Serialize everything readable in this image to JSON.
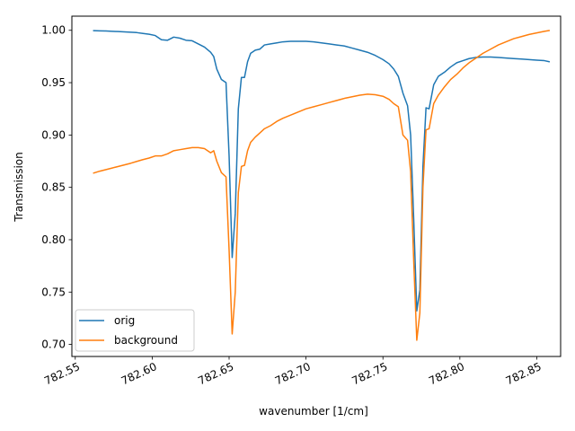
{
  "chart_data": {
    "type": "line",
    "title": "",
    "xlabel": "wavenumber [1/cm]",
    "ylabel": "Transmission",
    "xlim": [
      782.5478,
      782.8655
    ],
    "ylim": [
      0.6885,
      1.0135
    ],
    "xticks": [
      782.55,
      782.6,
      782.65,
      782.7,
      782.75,
      782.8,
      782.85
    ],
    "xtick_labels": [
      "782.55",
      "782.60",
      "782.65",
      "782.70",
      "782.75",
      "782.80",
      "782.85"
    ],
    "yticks": [
      0.7,
      0.75,
      0.8,
      0.85,
      0.9,
      0.95,
      1.0
    ],
    "ytick_labels": [
      "0.70",
      "0.75",
      "0.80",
      "0.85",
      "0.90",
      "0.95",
      "1.00"
    ],
    "grid": false,
    "legend_position": "lower-left",
    "series": [
      {
        "name": "orig",
        "color": "#1f77b4",
        "points": [
          [
            782.562,
            0.9997
          ],
          [
            782.566,
            0.9995
          ],
          [
            782.57,
            0.9993
          ],
          [
            782.574,
            0.999
          ],
          [
            782.578,
            0.9988
          ],
          [
            782.582,
            0.9985
          ],
          [
            782.586,
            0.9982
          ],
          [
            782.59,
            0.9978
          ],
          [
            782.594,
            0.997
          ],
          [
            782.598,
            0.9962
          ],
          [
            782.602,
            0.995
          ],
          [
            782.606,
            0.991
          ],
          [
            782.61,
            0.9905
          ],
          [
            782.614,
            0.9935
          ],
          [
            782.618,
            0.9925
          ],
          [
            782.622,
            0.9905
          ],
          [
            782.626,
            0.99
          ],
          [
            782.63,
            0.987
          ],
          [
            782.634,
            0.984
          ],
          [
            782.638,
            0.979
          ],
          [
            782.64,
            0.975
          ],
          [
            782.642,
            0.963
          ],
          [
            782.645,
            0.953
          ],
          [
            782.648,
            0.95
          ],
          [
            782.65,
            0.88
          ],
          [
            782.652,
            0.783
          ],
          [
            782.654,
            0.825
          ],
          [
            782.656,
            0.925
          ],
          [
            782.658,
            0.955
          ],
          [
            782.66,
            0.955
          ],
          [
            782.662,
            0.97
          ],
          [
            782.664,
            0.978
          ],
          [
            782.667,
            0.981
          ],
          [
            782.67,
            0.982
          ],
          [
            782.673,
            0.986
          ],
          [
            782.677,
            0.987
          ],
          [
            782.681,
            0.988
          ],
          [
            782.685,
            0.989
          ],
          [
            782.69,
            0.9895
          ],
          [
            782.695,
            0.9895
          ],
          [
            782.7,
            0.9895
          ],
          [
            782.705,
            0.989
          ],
          [
            782.71,
            0.988
          ],
          [
            782.715,
            0.987
          ],
          [
            782.72,
            0.986
          ],
          [
            782.725,
            0.985
          ],
          [
            782.73,
            0.983
          ],
          [
            782.735,
            0.981
          ],
          [
            782.74,
            0.979
          ],
          [
            782.745,
            0.976
          ],
          [
            782.75,
            0.972
          ],
          [
            782.754,
            0.968
          ],
          [
            782.757,
            0.963
          ],
          [
            782.76,
            0.956
          ],
          [
            782.763,
            0.94
          ],
          [
            782.766,
            0.928
          ],
          [
            782.768,
            0.9
          ],
          [
            782.77,
            0.82
          ],
          [
            782.772,
            0.732
          ],
          [
            782.774,
            0.752
          ],
          [
            782.776,
            0.87
          ],
          [
            782.778,
            0.926
          ],
          [
            782.78,
            0.925
          ],
          [
            782.783,
            0.948
          ],
          [
            782.786,
            0.956
          ],
          [
            782.79,
            0.96
          ],
          [
            782.794,
            0.965
          ],
          [
            782.798,
            0.969
          ],
          [
            782.802,
            0.971
          ],
          [
            782.806,
            0.973
          ],
          [
            782.81,
            0.974
          ],
          [
            782.815,
            0.9745
          ],
          [
            782.82,
            0.9745
          ],
          [
            782.825,
            0.974
          ],
          [
            782.83,
            0.9735
          ],
          [
            782.835,
            0.973
          ],
          [
            782.84,
            0.9725
          ],
          [
            782.845,
            0.972
          ],
          [
            782.85,
            0.9715
          ],
          [
            782.855,
            0.971
          ],
          [
            782.858,
            0.97
          ]
        ]
      },
      {
        "name": "background",
        "color": "#ff7f0e",
        "points": [
          [
            782.562,
            0.8637
          ],
          [
            782.566,
            0.8655
          ],
          [
            782.57,
            0.867
          ],
          [
            782.574,
            0.8685
          ],
          [
            782.578,
            0.87
          ],
          [
            782.582,
            0.8715
          ],
          [
            782.586,
            0.873
          ],
          [
            782.59,
            0.8748
          ],
          [
            782.594,
            0.8765
          ],
          [
            782.598,
            0.878
          ],
          [
            782.602,
            0.88
          ],
          [
            782.606,
            0.88
          ],
          [
            782.61,
            0.882
          ],
          [
            782.614,
            0.885
          ],
          [
            782.618,
            0.886
          ],
          [
            782.622,
            0.887
          ],
          [
            782.626,
            0.888
          ],
          [
            782.63,
            0.888
          ],
          [
            782.634,
            0.887
          ],
          [
            782.638,
            0.883
          ],
          [
            782.64,
            0.885
          ],
          [
            782.642,
            0.875
          ],
          [
            782.645,
            0.864
          ],
          [
            782.648,
            0.86
          ],
          [
            782.65,
            0.79
          ],
          [
            782.652,
            0.71
          ],
          [
            782.654,
            0.75
          ],
          [
            782.656,
            0.845
          ],
          [
            782.658,
            0.87
          ],
          [
            782.66,
            0.871
          ],
          [
            782.662,
            0.885
          ],
          [
            782.664,
            0.893
          ],
          [
            782.667,
            0.898
          ],
          [
            782.67,
            0.902
          ],
          [
            782.673,
            0.906
          ],
          [
            782.677,
            0.909
          ],
          [
            782.681,
            0.913
          ],
          [
            782.685,
            0.916
          ],
          [
            782.69,
            0.919
          ],
          [
            782.695,
            0.922
          ],
          [
            782.7,
            0.925
          ],
          [
            782.705,
            0.927
          ],
          [
            782.71,
            0.929
          ],
          [
            782.715,
            0.931
          ],
          [
            782.72,
            0.933
          ],
          [
            782.725,
            0.935
          ],
          [
            782.73,
            0.9365
          ],
          [
            782.735,
            0.938
          ],
          [
            782.74,
            0.939
          ],
          [
            782.745,
            0.9385
          ],
          [
            782.75,
            0.937
          ],
          [
            782.754,
            0.934
          ],
          [
            782.757,
            0.93
          ],
          [
            782.76,
            0.927
          ],
          [
            782.763,
            0.9
          ],
          [
            782.766,
            0.895
          ],
          [
            782.768,
            0.865
          ],
          [
            782.77,
            0.78
          ],
          [
            782.772,
            0.704
          ],
          [
            782.774,
            0.73
          ],
          [
            782.776,
            0.85
          ],
          [
            782.778,
            0.905
          ],
          [
            782.78,
            0.906
          ],
          [
            782.783,
            0.93
          ],
          [
            782.786,
            0.938
          ],
          [
            782.79,
            0.946
          ],
          [
            782.794,
            0.953
          ],
          [
            782.798,
            0.958
          ],
          [
            782.802,
            0.964
          ],
          [
            782.806,
            0.969
          ],
          [
            782.81,
            0.973
          ],
          [
            782.815,
            0.978
          ],
          [
            782.82,
            0.982
          ],
          [
            782.825,
            0.986
          ],
          [
            782.83,
            0.989
          ],
          [
            782.835,
            0.992
          ],
          [
            782.84,
            0.994
          ],
          [
            782.845,
            0.996
          ],
          [
            782.85,
            0.9975
          ],
          [
            782.855,
            0.999
          ],
          [
            782.858,
            0.9998
          ]
        ]
      }
    ]
  }
}
